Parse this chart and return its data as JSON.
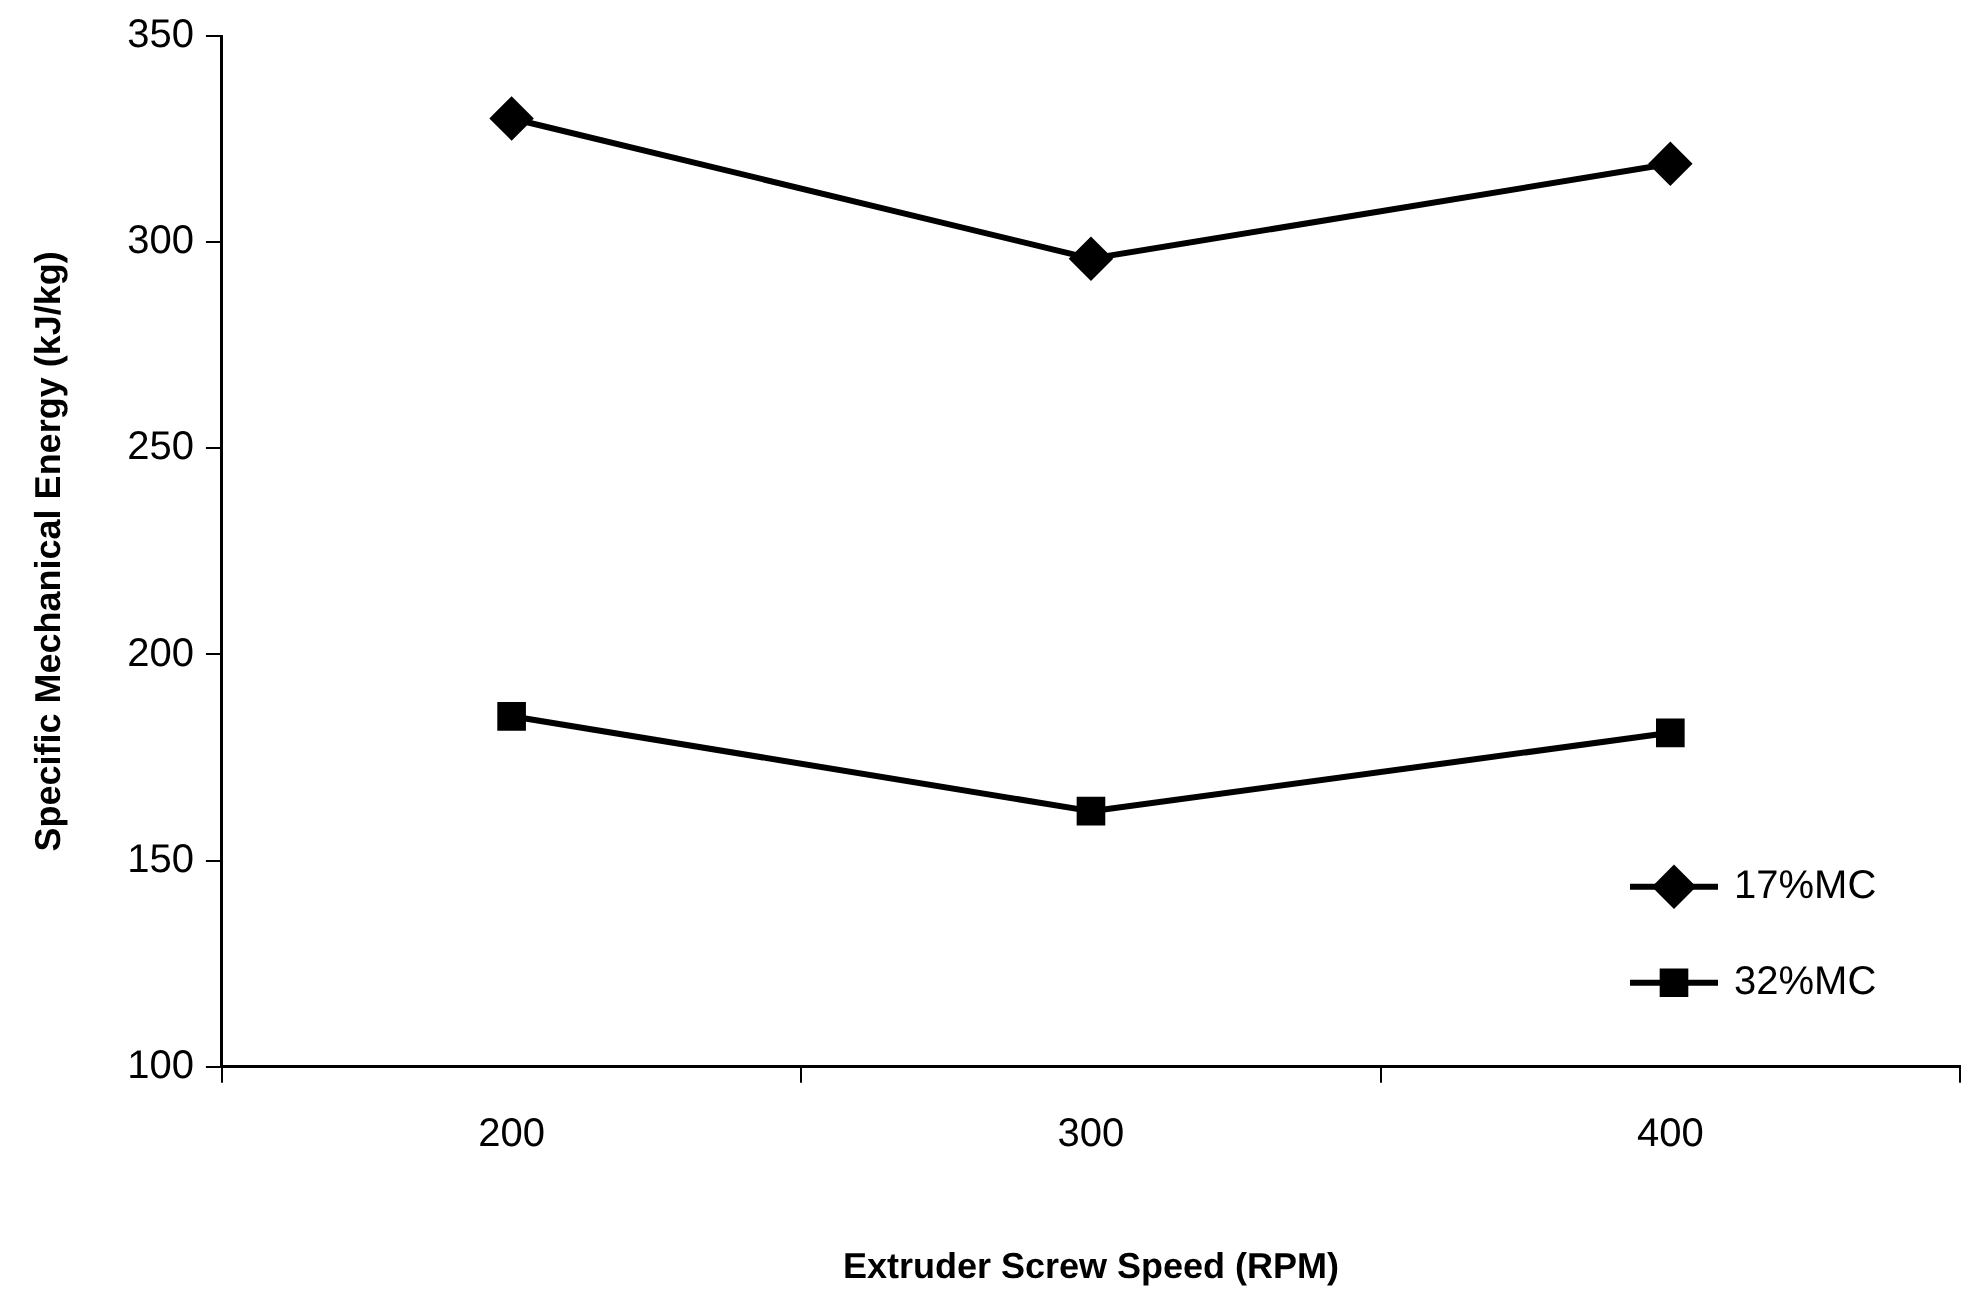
{
  "chart_data": {
    "type": "line",
    "xlabel": "Extruder Screw Speed (RPM)",
    "ylabel": "Specific Mechanical Energy (kJ/kg)",
    "categories": [
      "200",
      "300",
      "400"
    ],
    "series": [
      {
        "name": "17%MC",
        "color": "#000000",
        "marker": "diamond",
        "values": [
          330,
          296,
          319
        ]
      },
      {
        "name": "32%MC",
        "color": "#000000",
        "marker": "square",
        "values": [
          185,
          162,
          181
        ]
      }
    ],
    "ylim": [
      100,
      350
    ],
    "yticks": [
      100,
      150,
      200,
      250,
      300,
      350
    ],
    "grid": false,
    "legend": "bottom right",
    "line_style": "solid"
  }
}
